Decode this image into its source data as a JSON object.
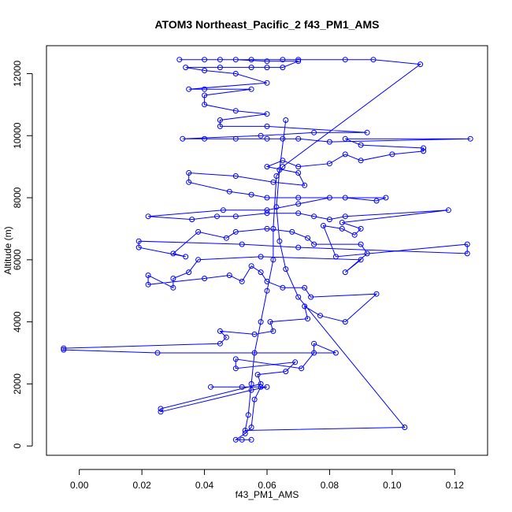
{
  "chart_data": {
    "type": "scatter",
    "title": "ATOM3 Northeast_Pacific_2 f43_PM1_AMS",
    "xlabel": "f43_PM1_AMS",
    "ylabel": "Altitude (m)",
    "xlim": [
      -0.0105,
      0.1305
    ],
    "ylim": [
      -300,
      12900
    ],
    "xticks": [
      0.0,
      0.02,
      0.04,
      0.06,
      0.08,
      0.1,
      0.12
    ],
    "xtick_labels": [
      "0.00",
      "0.02",
      "0.04",
      "0.06",
      "0.08",
      "0.10",
      "0.12"
    ],
    "yticks": [
      0,
      2000,
      4000,
      6000,
      8000,
      10000,
      12000
    ],
    "ytick_labels": [
      "0",
      "2000",
      "4000",
      "6000",
      "8000",
      "10000",
      "12000"
    ],
    "series_color": "#0000ff",
    "marker": "open-circle",
    "connected": true,
    "grid": false,
    "points": [
      [
        0.052,
        200
      ],
      [
        0.055,
        200
      ],
      [
        0.05,
        200
      ],
      [
        0.053,
        400
      ],
      [
        0.055,
        600
      ],
      [
        0.056,
        1500
      ],
      [
        0.058,
        1900
      ],
      [
        0.052,
        1900
      ],
      [
        0.042,
        1900
      ],
      [
        0.06,
        1900
      ],
      [
        0.055,
        1800
      ],
      [
        0.026,
        1100
      ],
      [
        0.026,
        1200
      ],
      [
        0.058,
        2000
      ],
      [
        0.057,
        2300
      ],
      [
        0.066,
        2400
      ],
      [
        0.069,
        2700
      ],
      [
        0.05,
        2500
      ],
      [
        0.05,
        2800
      ],
      [
        0.071,
        2500
      ],
      [
        0.075,
        3000
      ],
      [
        0.075,
        3300
      ],
      [
        0.082,
        3000
      ],
      [
        0.025,
        3000
      ],
      [
        -0.005,
        3100
      ],
      [
        -0.005,
        3150
      ],
      [
        0.045,
        3300
      ],
      [
        0.047,
        3500
      ],
      [
        0.045,
        3700
      ],
      [
        0.056,
        3600
      ],
      [
        0.062,
        3700
      ],
      [
        0.061,
        4000
      ],
      [
        0.073,
        4100
      ],
      [
        0.072,
        4500
      ],
      [
        0.077,
        4200
      ],
      [
        0.085,
        4000
      ],
      [
        0.095,
        4900
      ],
      [
        0.074,
        4800
      ],
      [
        0.072,
        5100
      ],
      [
        0.065,
        5100
      ],
      [
        0.06,
        5300
      ],
      [
        0.058,
        5600
      ],
      [
        0.055,
        5800
      ],
      [
        0.052,
        5300
      ],
      [
        0.048,
        5500
      ],
      [
        0.04,
        5400
      ],
      [
        0.022,
        5200
      ],
      [
        0.022,
        5500
      ],
      [
        0.03,
        5100
      ],
      [
        0.03,
        5400
      ],
      [
        0.035,
        5600
      ],
      [
        0.038,
        6000
      ],
      [
        0.058,
        6100
      ],
      [
        0.09,
        6000
      ],
      [
        0.085,
        5600
      ],
      [
        0.092,
        6200
      ],
      [
        0.09,
        6500
      ],
      [
        0.075,
        6500
      ],
      [
        0.073,
        6700
      ],
      [
        0.068,
        6900
      ],
      [
        0.06,
        7000
      ],
      [
        0.05,
        6900
      ],
      [
        0.047,
        6700
      ],
      [
        0.038,
        6900
      ],
      [
        0.03,
        6200
      ],
      [
        0.034,
        6100
      ],
      [
        0.019,
        6400
      ],
      [
        0.019,
        6600
      ],
      [
        0.052,
        6500
      ],
      [
        0.07,
        6400
      ],
      [
        0.124,
        6200
      ],
      [
        0.124,
        6500
      ],
      [
        0.082,
        6100
      ],
      [
        0.078,
        7100
      ],
      [
        0.084,
        7000
      ],
      [
        0.088,
        6800
      ],
      [
        0.09,
        7000
      ],
      [
        0.084,
        7200
      ],
      [
        0.118,
        7600
      ],
      [
        0.085,
        7400
      ],
      [
        0.08,
        7300
      ],
      [
        0.075,
        7400
      ],
      [
        0.07,
        7500
      ],
      [
        0.06,
        7500
      ],
      [
        0.05,
        7400
      ],
      [
        0.044,
        7400
      ],
      [
        0.036,
        7300
      ],
      [
        0.022,
        7400
      ],
      [
        0.046,
        7600
      ],
      [
        0.06,
        7600
      ],
      [
        0.07,
        7800
      ],
      [
        0.08,
        8000
      ],
      [
        0.098,
        8000
      ],
      [
        0.095,
        7900
      ],
      [
        0.085,
        8000
      ],
      [
        0.07,
        8000
      ],
      [
        0.06,
        8000
      ],
      [
        0.055,
        8100
      ],
      [
        0.048,
        8200
      ],
      [
        0.035,
        8500
      ],
      [
        0.035,
        8800
      ],
      [
        0.05,
        8700
      ],
      [
        0.062,
        8500
      ],
      [
        0.072,
        8400
      ],
      [
        0.07,
        8800
      ],
      [
        0.06,
        9000
      ],
      [
        0.065,
        9200
      ],
      [
        0.07,
        9000
      ],
      [
        0.08,
        9100
      ],
      [
        0.085,
        9400
      ],
      [
        0.09,
        9200
      ],
      [
        0.1,
        9400
      ],
      [
        0.11,
        9500
      ],
      [
        0.11,
        9600
      ],
      [
        0.09,
        9700
      ],
      [
        0.085,
        9900
      ],
      [
        0.125,
        9900
      ],
      [
        0.08,
        9800
      ],
      [
        0.07,
        9900
      ],
      [
        0.065,
        9900
      ],
      [
        0.06,
        9900
      ],
      [
        0.05,
        9900
      ],
      [
        0.04,
        9900
      ],
      [
        0.033,
        9900
      ],
      [
        0.058,
        10000
      ],
      [
        0.075,
        10100
      ],
      [
        0.092,
        10100
      ],
      [
        0.06,
        10300
      ],
      [
        0.045,
        10300
      ],
      [
        0.045,
        10500
      ],
      [
        0.06,
        10700
      ],
      [
        0.05,
        10800
      ],
      [
        0.04,
        11000
      ],
      [
        0.04,
        11300
      ],
      [
        0.055,
        11500
      ],
      [
        0.04,
        11500
      ],
      [
        0.035,
        11500
      ],
      [
        0.06,
        11700
      ],
      [
        0.05,
        12000
      ],
      [
        0.04,
        12100
      ],
      [
        0.034,
        12200
      ],
      [
        0.045,
        12200
      ],
      [
        0.055,
        12200
      ],
      [
        0.06,
        12200
      ],
      [
        0.065,
        12200
      ],
      [
        0.07,
        12400
      ],
      [
        0.06,
        12400
      ],
      [
        0.05,
        12450
      ],
      [
        0.04,
        12450
      ],
      [
        0.032,
        12450
      ],
      [
        0.045,
        12450
      ],
      [
        0.055,
        12450
      ],
      [
        0.065,
        12450
      ],
      [
        0.07,
        12450
      ],
      [
        0.085,
        12450
      ],
      [
        0.094,
        12450
      ],
      [
        0.109,
        12300
      ],
      [
        0.065,
        9000
      ],
      [
        0.063,
        8700
      ],
      [
        0.062,
        7000
      ],
      [
        0.062,
        6000
      ],
      [
        0.06,
        5000
      ],
      [
        0.058,
        4000
      ],
      [
        0.056,
        3000
      ],
      [
        0.055,
        2000
      ],
      [
        0.054,
        1000
      ],
      [
        0.053,
        500
      ],
      [
        0.104,
        600
      ],
      [
        0.07,
        4800
      ],
      [
        0.066,
        5700
      ],
      [
        0.064,
        6600
      ],
      [
        0.063,
        7700
      ],
      [
        0.064,
        8900
      ],
      [
        0.066,
        10500
      ]
    ]
  }
}
